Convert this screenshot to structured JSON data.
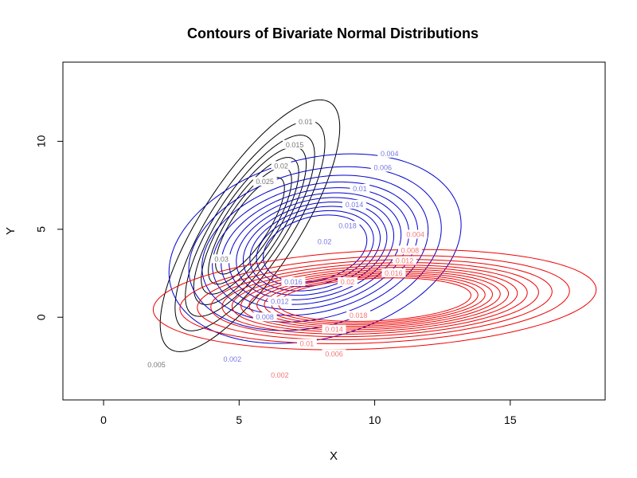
{
  "chart_data": {
    "type": "contour",
    "title": "Contours of Bivariate Normal Distributions",
    "xlabel": "X",
    "ylabel": "Y",
    "xlim": [
      -1.5,
      18.5
    ],
    "ylim": [
      -4.7,
      14.5
    ],
    "xticks": [
      0,
      5,
      10,
      15
    ],
    "yticks": [
      0,
      5,
      10
    ],
    "series": [
      {
        "color": "#000000",
        "mean": [
          5.4,
          5.2
        ],
        "sd": [
          1.55,
          3.35
        ],
        "rho": 0.78,
        "levels": [
          0.005,
          0.01,
          0.015,
          0.02,
          0.025,
          0.03,
          0.035
        ],
        "labels": [
          {
            "level": 0.005,
            "text": "0.005",
            "x": 1.95,
            "y": -2.7
          },
          {
            "level": 0.01,
            "text": "0.01",
            "x": 7.45,
            "y": 11.1
          },
          {
            "level": 0.015,
            "text": "0.015",
            "x": 7.05,
            "y": 9.8
          },
          {
            "level": 0.02,
            "text": "0.02",
            "x": 6.55,
            "y": 8.6
          },
          {
            "level": 0.025,
            "text": "0.025",
            "x": 5.95,
            "y": 7.7
          },
          {
            "level": 0.03,
            "text": "0.03",
            "x": 4.35,
            "y": 3.3
          }
        ]
      },
      {
        "color": "#0000cd",
        "mean": [
          7.8,
          3.9
        ],
        "sd": [
          2.3,
          2.3
        ],
        "rho": 0.25,
        "levels": [
          0.002,
          0.004,
          0.006,
          0.008,
          0.01,
          0.012,
          0.014,
          0.016,
          0.018,
          0.02,
          0.022
        ],
        "labels": [
          {
            "level": 0.002,
            "text": "0.002",
            "x": 4.75,
            "y": -2.4
          },
          {
            "level": 0.004,
            "text": "0.004",
            "x": 10.55,
            "y": 9.3
          },
          {
            "level": 0.006,
            "text": "0.006",
            "x": 10.3,
            "y": 8.5
          },
          {
            "level": 0.008,
            "text": "0.008",
            "x": 5.95,
            "y": 0.0
          },
          {
            "level": 0.01,
            "text": "0.01",
            "x": 9.45,
            "y": 7.3
          },
          {
            "level": 0.012,
            "text": "0.012",
            "x": 6.5,
            "y": 0.9
          },
          {
            "level": 0.014,
            "text": "0.014",
            "x": 9.25,
            "y": 6.4
          },
          {
            "level": 0.016,
            "text": "0.016",
            "x": 7.0,
            "y": 2.0
          },
          {
            "level": 0.018,
            "text": "0.018",
            "x": 9.0,
            "y": 5.2
          },
          {
            "level": 0.02,
            "text": "0.02",
            "x": 8.15,
            "y": 4.3
          }
        ]
      },
      {
        "color": "#ee0000",
        "mean": [
          10.0,
          1.0
        ],
        "sd": [
          3.3,
          1.15
        ],
        "rho": 0.2,
        "levels": [
          0.002,
          0.004,
          0.006,
          0.008,
          0.01,
          0.012,
          0.014,
          0.016,
          0.018,
          0.02,
          0.022,
          0.024
        ],
        "labels": [
          {
            "level": 0.002,
            "text": "0.002",
            "x": 6.5,
            "y": -3.3
          },
          {
            "level": 0.004,
            "text": "0.004",
            "x": 11.5,
            "y": 4.7
          },
          {
            "level": 0.006,
            "text": "0.006",
            "x": 8.5,
            "y": -2.1
          },
          {
            "level": 0.008,
            "text": "0.008",
            "x": 11.3,
            "y": 3.8
          },
          {
            "level": 0.01,
            "text": "0.01",
            "x": 7.5,
            "y": -1.5
          },
          {
            "level": 0.012,
            "text": "0.012",
            "x": 11.1,
            "y": 3.2
          },
          {
            "level": 0.014,
            "text": "0.014",
            "x": 8.5,
            "y": -0.7
          },
          {
            "level": 0.016,
            "text": "0.016",
            "x": 10.7,
            "y": 2.5
          },
          {
            "level": 0.018,
            "text": "0.018",
            "x": 9.4,
            "y": 0.1
          },
          {
            "level": 0.02,
            "text": "0.02",
            "x": 9.0,
            "y": 2.0
          }
        ]
      }
    ]
  }
}
